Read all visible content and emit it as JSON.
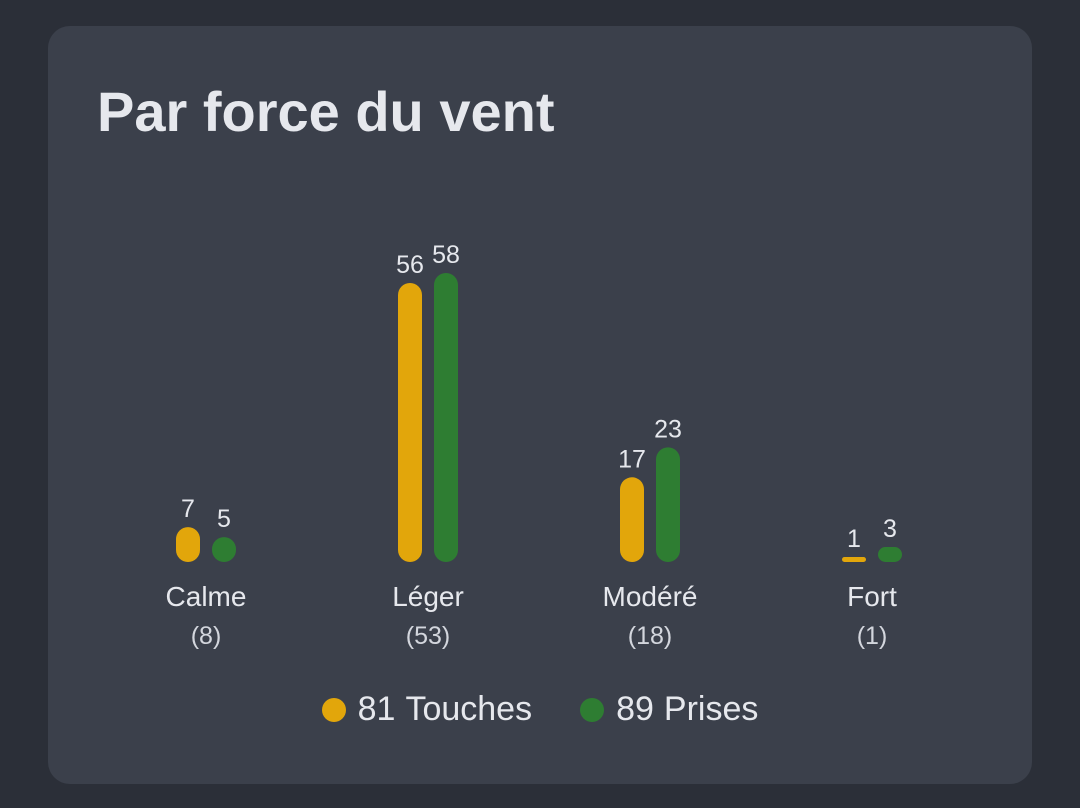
{
  "title": "Par force du vent",
  "colors": {
    "background": "#2b2f38",
    "card": "#3b404b",
    "touches": "#e2a60b",
    "prises": "#2e7d32",
    "text": "#e6e8ed",
    "muted": "#d3d6dd"
  },
  "legend": [
    {
      "count": "81",
      "label": "Touches",
      "color": "#e2a60b"
    },
    {
      "count": "89",
      "label": "Prises",
      "color": "#2e7d32"
    }
  ],
  "chart_data": {
    "type": "bar",
    "categories": [
      "Calme",
      "Léger",
      "Modéré",
      "Fort"
    ],
    "category_counts": [
      "(8)",
      "(53)",
      "(18)",
      "(1)"
    ],
    "series": [
      {
        "name": "Touches",
        "color": "#e2a60b",
        "values": [
          7,
          56,
          17,
          1
        ]
      },
      {
        "name": "Prises",
        "color": "#2e7d32",
        "values": [
          5,
          58,
          23,
          3
        ]
      }
    ],
    "ylim": [
      0,
      58
    ],
    "grid": false,
    "legend_position": "bottom-center",
    "title": "Par force du vent"
  }
}
